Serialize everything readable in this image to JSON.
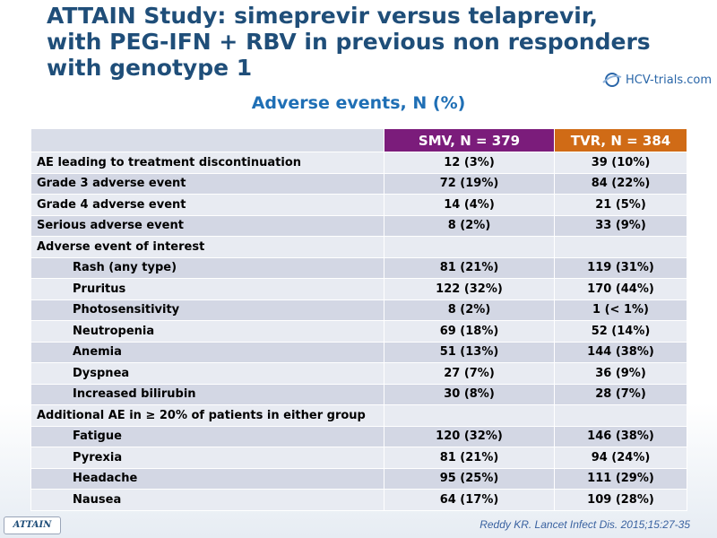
{
  "title": {
    "lines": [
      "ATTAIN Study: simeprevir versus telaprevir,",
      "with PEG-IFN + RBV in previous non responders",
      "with genotype 1"
    ]
  },
  "logo": {
    "text": "HCV-trials.com",
    "icon": "hcv-trials-logo-icon"
  },
  "subtitle": "Adverse events, N (%)",
  "table": {
    "header": {
      "col0": "",
      "col1": "SMV, N = 379",
      "col2": "TVR, N = 384"
    },
    "rows": [
      {
        "label": "AE leading to treatment discontinuation",
        "smv": "12 (3%)",
        "tvr": "39 (10%)"
      },
      {
        "label": "Grade 3 adverse event",
        "smv": "72 (19%)",
        "tvr": "84 (22%)"
      },
      {
        "label": "Grade 4 adverse event",
        "smv": "14 (4%)",
        "tvr": "21 (5%)"
      },
      {
        "label": "Serious adverse event",
        "smv": "8 (2%)",
        "tvr": "33 (9%)"
      },
      {
        "label": "Adverse event of interest",
        "smv": "",
        "tvr": ""
      },
      {
        "label": "Rash (any type)",
        "smv": "81 (21%)",
        "tvr": "119 (31%)"
      },
      {
        "label": "Pruritus",
        "smv": "122 (32%)",
        "tvr": "170 (44%)"
      },
      {
        "label": "Photosensitivity",
        "smv": "8 (2%)",
        "tvr": "1 (< 1%)"
      },
      {
        "label": "Neutropenia",
        "smv": "69 (18%)",
        "tvr": "52 (14%)"
      },
      {
        "label": "Anemia",
        "smv": "51 (13%)",
        "tvr": "144 (38%)"
      },
      {
        "label": "Dyspnea",
        "smv": "27 (7%)",
        "tvr": "36 (9%)"
      },
      {
        "label": "Increased bilirubin",
        "smv": "30 (8%)",
        "tvr": "28 (7%)"
      },
      {
        "label": "Additional AE in ≥ 20% of patients in either group",
        "smv": "",
        "tvr": ""
      },
      {
        "label": "Fatigue",
        "smv": "120 (32%)",
        "tvr": "146 (38%)"
      },
      {
        "label": "Pyrexia",
        "smv": "81 (21%)",
        "tvr": "94 (24%)"
      },
      {
        "label": "Headache",
        "smv": "95 (25%)",
        "tvr": "111 (29%)"
      },
      {
        "label": "Nausea",
        "smv": "64 (17%)",
        "tvr": "109 (28%)"
      }
    ]
  },
  "footer": {
    "badge": "ATTAIN",
    "citation": "Reddy KR. Lancet Infect Dis. 2015;15:27-35"
  },
  "colors": {
    "title": "#1f4e79",
    "subtitle": "#1f6fb5",
    "smv_header": "#7b1c7b",
    "tvr_header": "#d06b16",
    "row_light": "#e8ebf2",
    "row_dark": "#d3d7e4"
  }
}
